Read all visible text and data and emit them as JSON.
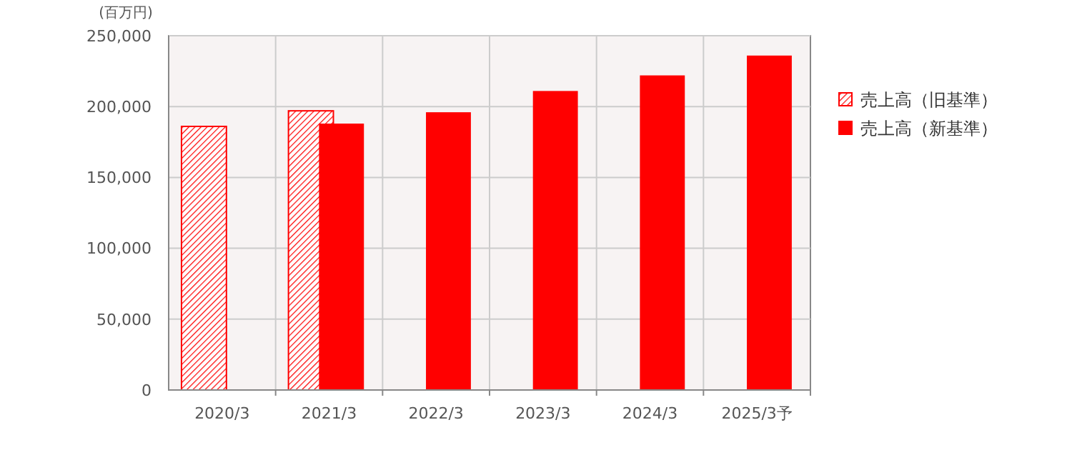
{
  "chart_data": {
    "type": "bar",
    "ylabel": "(百万円)",
    "categories": [
      "2020/3",
      "2021/3",
      "2022/3",
      "2023/3",
      "2024/3",
      "2025/3予"
    ],
    "series": [
      {
        "name": "売上高（旧基準）",
        "color": "#ff0000",
        "values": [
          186000,
          197000,
          null,
          null,
          null,
          null
        ]
      },
      {
        "name": "売上高（新基準）",
        "color": "#ff0000",
        "values": [
          null,
          188000,
          196000,
          211000,
          222000,
          236000
        ]
      }
    ],
    "ylim": [
      0,
      250000
    ],
    "yticks": [
      {
        "value": 0,
        "label": "0"
      },
      {
        "value": 50000,
        "label": "50,000"
      },
      {
        "value": 100000,
        "label": "100,000"
      },
      {
        "value": 150000,
        "label": "150,000"
      },
      {
        "value": 200000,
        "label": "200,000"
      },
      {
        "value": 250000,
        "label": "250,000"
      }
    ],
    "grid": true,
    "legend": "right"
  }
}
